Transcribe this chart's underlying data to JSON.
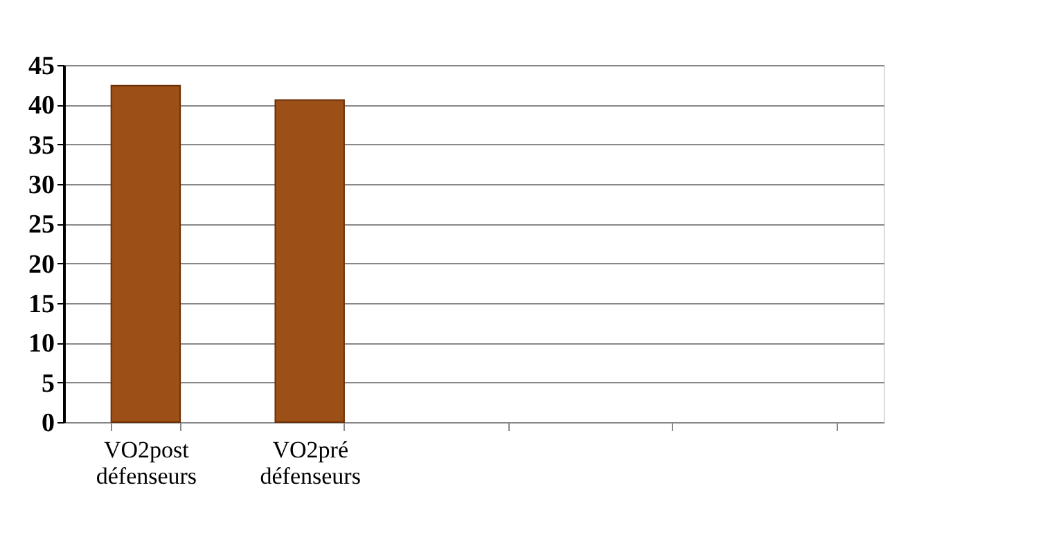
{
  "chart_data": {
    "type": "bar",
    "categories": [
      "VO2post défenseurs",
      "VO2pré défenseurs",
      null,
      null,
      null
    ],
    "values": [
      42.4,
      40.6,
      null,
      null,
      null
    ],
    "color": "#9c4f16",
    "ylim": [
      0,
      45
    ],
    "yticks": [
      0,
      5,
      10,
      15,
      20,
      25,
      30,
      35,
      40,
      45
    ],
    "grid": "y"
  }
}
